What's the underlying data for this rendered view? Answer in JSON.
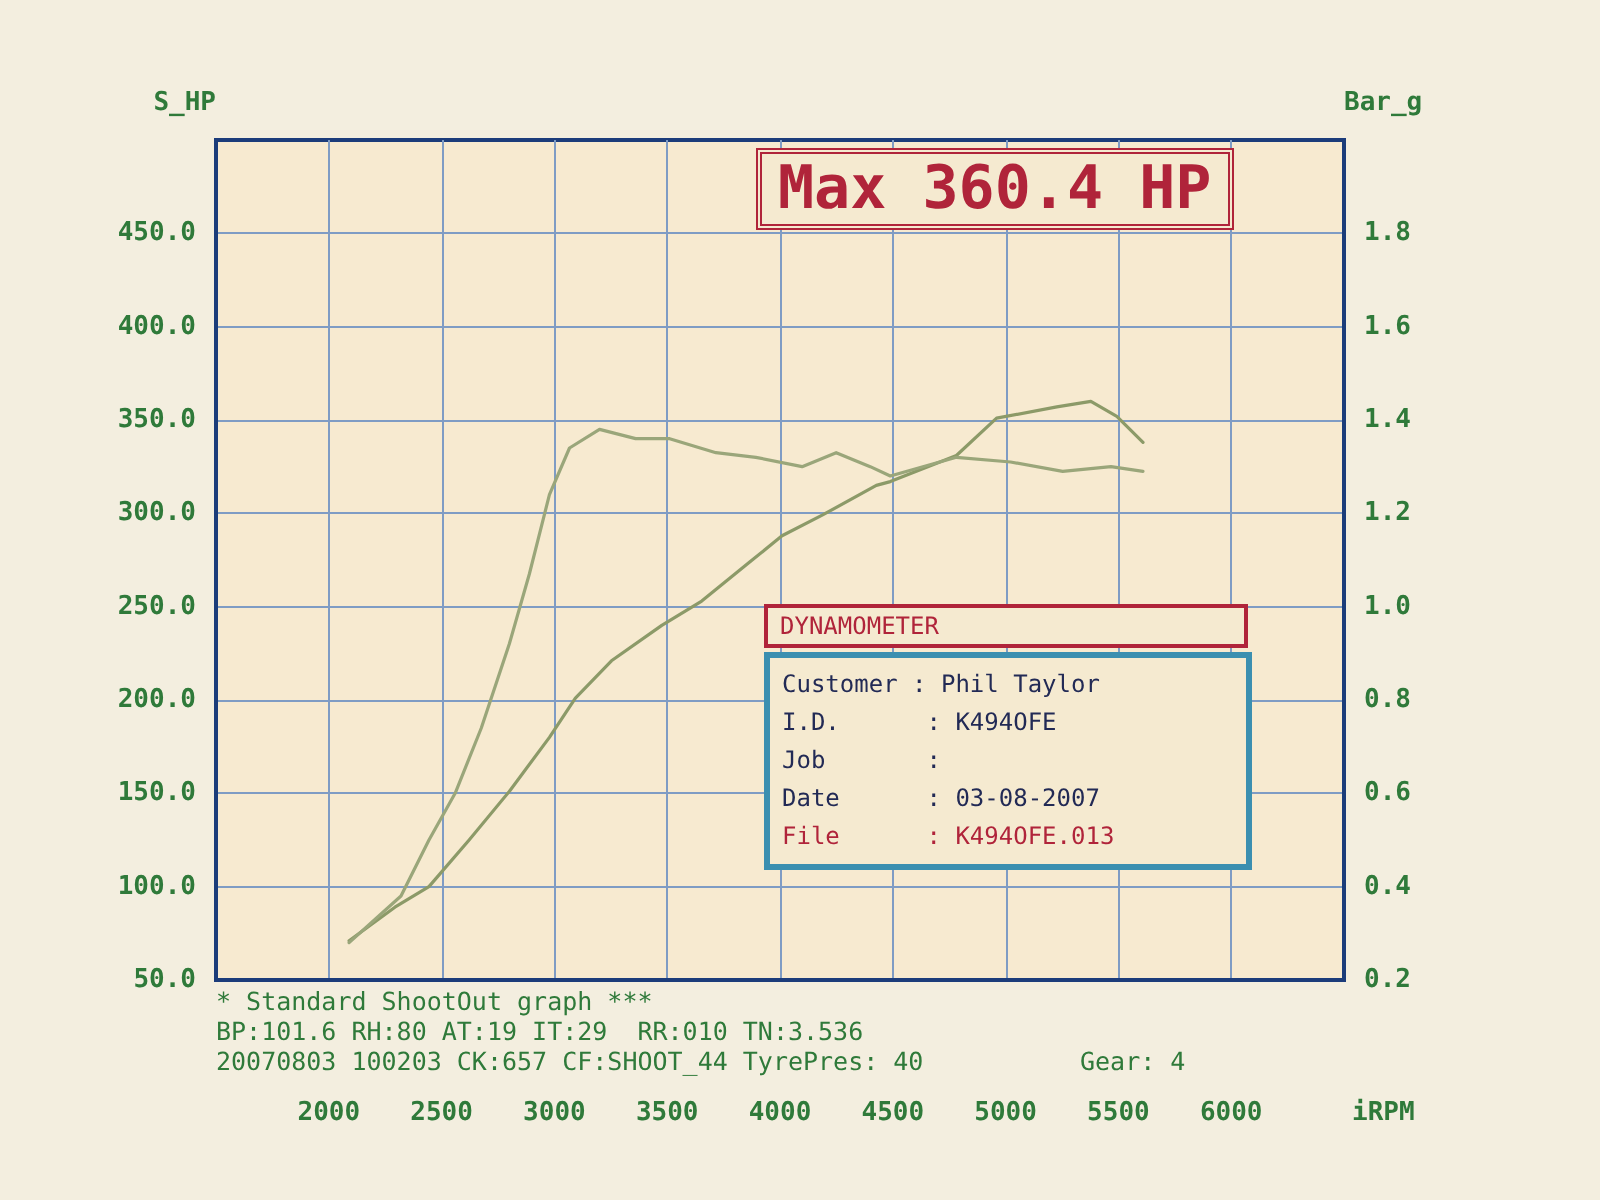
{
  "chart_data": {
    "type": "line",
    "ylabel": "S_HP",
    "y2label": "Bar_g",
    "xlabel": "iRPM",
    "annotations": [
      "Max 360.4 HP",
      "DYNAMOMETER",
      "Customer : Phil Taylor",
      "I.D.      : K494OFE",
      "Job       :",
      "Date      : 03-08-2007",
      "File      : K494OFE.013",
      "* Standard ShootOut graph ***",
      "BP:101.6 RH:80 AT:19 IT:29  RR:010 TN:3.536",
      "20070803 100203 CK:657 CF:SHOOT_44 TyrePres: 40",
      "Gear: 4"
    ],
    "series": [
      {
        "color": "#8c9a68",
        "x": [
          2090,
          2293,
          2444,
          2622,
          2800,
          2978,
          3093,
          3253,
          3476,
          3653,
          3867,
          4009,
          4187,
          4427,
          4489,
          4782,
          4960,
          5227,
          5378,
          5493,
          5609
        ],
        "values": [
          71,
          89,
          100,
          125,
          151,
          180,
          201,
          221,
          240,
          253,
          274,
          288,
          299,
          315,
          317,
          331,
          351,
          357,
          360,
          352,
          338
        ]
      },
      {
        "color": "#9aa67a",
        "axis": "y2",
        "x": [
          2090,
          2320,
          2444,
          2560,
          2676,
          2800,
          2889,
          2978,
          3067,
          3200,
          3360,
          3511,
          3716,
          3893,
          4098,
          4249,
          4400,
          4489,
          4782,
          5022,
          5253,
          5467,
          5609
        ],
        "values": [
          0.28,
          0.38,
          0.5,
          0.6,
          0.74,
          0.92,
          1.07,
          1.24,
          1.34,
          1.38,
          1.36,
          1.36,
          1.33,
          1.32,
          1.3,
          1.33,
          1.3,
          1.28,
          1.32,
          1.31,
          1.29,
          1.3,
          1.29
        ]
      }
    ],
    "xlim": [
      1500,
      6500
    ],
    "xticks": [
      2000,
      2500,
      3000,
      3500,
      4000,
      4500,
      5000,
      5500,
      6000
    ],
    "ylim": [
      50,
      500
    ],
    "yticks": [
      {
        "value": 50,
        "label": "50.0"
      },
      {
        "value": 100,
        "label": "100.0"
      },
      {
        "value": 150,
        "label": "150.0"
      },
      {
        "value": 200,
        "label": "200.0"
      },
      {
        "value": 250,
        "label": "250.0"
      },
      {
        "value": 300,
        "label": "300.0"
      },
      {
        "value": 350,
        "label": "350.0"
      },
      {
        "value": 400,
        "label": "400.0"
      },
      {
        "value": 450,
        "label": "450.0"
      }
    ],
    "y2lim": [
      0.2,
      2.0
    ],
    "y2ticks": [
      0.2,
      0.4,
      0.6,
      0.8,
      {
        "value": 1,
        "label": "1.0"
      },
      1.2,
      1.4,
      1.6,
      1.8
    ],
    "grid": true,
    "marker": "none",
    "line_style": "solid"
  }
}
